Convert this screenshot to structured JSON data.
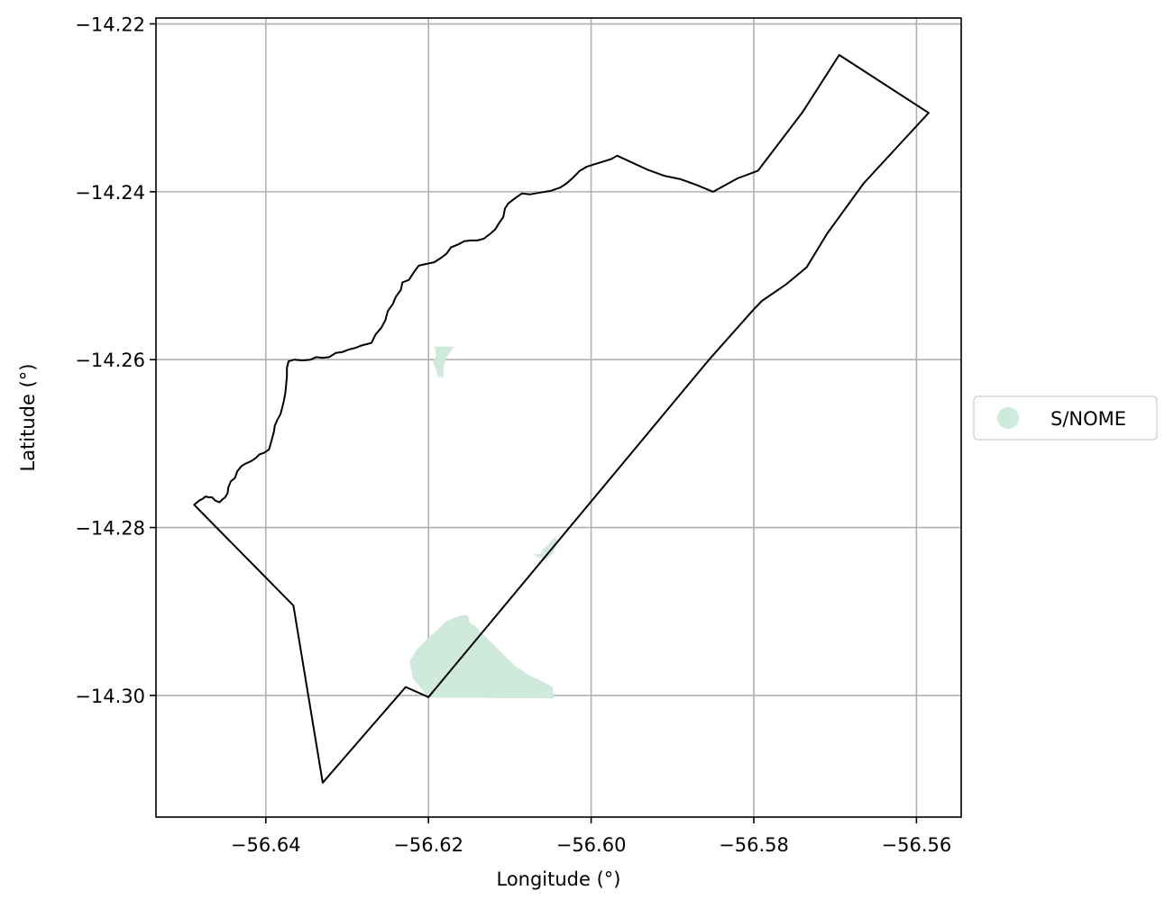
{
  "chart_data": {
    "type": "map",
    "xlabel": "Longitude (°)",
    "ylabel": "Latitude (°)",
    "xlim": [
      -56.6535,
      -56.5545
    ],
    "ylim": [
      -14.3145,
      -14.2193
    ],
    "x_ticks": [
      -56.64,
      -56.62,
      -56.6,
      -56.58,
      -56.56
    ],
    "x_tick_labels": [
      "−56.64",
      "−56.62",
      "−56.60",
      "−56.58",
      "−56.56"
    ],
    "y_ticks": [
      -14.22,
      -14.24,
      -14.26,
      -14.28,
      -14.3
    ],
    "y_tick_labels": [
      "−14.22",
      "−14.24",
      "−14.26",
      "−14.28",
      "−14.30"
    ],
    "grid": true,
    "legend_position": "center-right outside",
    "legend": [
      {
        "label": "S/NOME",
        "color": "#cfeadd"
      }
    ],
    "boundary": {
      "stroke": "#000000",
      "fill": "none",
      "coordinates": [
        [
          -56.6488,
          -14.2773
        ],
        [
          -56.6482,
          -14.2768
        ],
        [
          -56.6478,
          -14.2766
        ],
        [
          -56.6474,
          -14.2763
        ],
        [
          -56.647,
          -14.2764
        ],
        [
          -56.6466,
          -14.2764
        ],
        [
          -56.6462,
          -14.2768
        ],
        [
          -56.6457,
          -14.277
        ],
        [
          -56.6454,
          -14.2767
        ],
        [
          -56.645,
          -14.2764
        ],
        [
          -56.6447,
          -14.2759
        ],
        [
          -56.6446,
          -14.2752
        ],
        [
          -56.6443,
          -14.2745
        ],
        [
          -56.6438,
          -14.2741
        ],
        [
          -56.6435,
          -14.2733
        ],
        [
          -56.643,
          -14.2727
        ],
        [
          -56.6425,
          -14.2724
        ],
        [
          -56.6418,
          -14.2721
        ],
        [
          -56.6412,
          -14.2717
        ],
        [
          -56.6408,
          -14.2713
        ],
        [
          -56.6402,
          -14.2711
        ],
        [
          -56.6396,
          -14.2707
        ],
        [
          -56.6394,
          -14.27
        ],
        [
          -56.6392,
          -14.2693
        ],
        [
          -56.639,
          -14.2686
        ],
        [
          -56.6389,
          -14.2679
        ],
        [
          -56.6386,
          -14.2672
        ],
        [
          -56.6382,
          -14.2665
        ],
        [
          -56.638,
          -14.2658
        ],
        [
          -56.6378,
          -14.265
        ],
        [
          -56.6376,
          -14.264
        ],
        [
          -56.6375,
          -14.263
        ],
        [
          -56.6374,
          -14.262
        ],
        [
          -56.6374,
          -14.261
        ],
        [
          -56.6372,
          -14.2602
        ],
        [
          -56.6365,
          -14.26
        ],
        [
          -56.6355,
          -14.2601
        ],
        [
          -56.6345,
          -14.26
        ],
        [
          -56.6338,
          -14.2597
        ],
        [
          -56.633,
          -14.2598
        ],
        [
          -56.6322,
          -14.2597
        ],
        [
          -56.6314,
          -14.2592
        ],
        [
          -56.6306,
          -14.2591
        ],
        [
          -56.6298,
          -14.2588
        ],
        [
          -56.629,
          -14.2586
        ],
        [
          -56.6282,
          -14.2583
        ],
        [
          -56.627,
          -14.258
        ],
        [
          -56.6265,
          -14.257
        ],
        [
          -56.6258,
          -14.2562
        ],
        [
          -56.6253,
          -14.2553
        ],
        [
          -56.625,
          -14.2542
        ],
        [
          -56.6244,
          -14.2534
        ],
        [
          -56.624,
          -14.2525
        ],
        [
          -56.6234,
          -14.2517
        ],
        [
          -56.6232,
          -14.2508
        ],
        [
          -56.6224,
          -14.2505
        ],
        [
          -56.6218,
          -14.2496
        ],
        [
          -56.6212,
          -14.2488
        ],
        [
          -56.6203,
          -14.2486
        ],
        [
          -56.6193,
          -14.2484
        ],
        [
          -56.6185,
          -14.2479
        ],
        [
          -56.6178,
          -14.2474
        ],
        [
          -56.6172,
          -14.2466
        ],
        [
          -56.6164,
          -14.2463
        ],
        [
          -56.6156,
          -14.2459
        ],
        [
          -56.6148,
          -14.2458
        ],
        [
          -56.614,
          -14.2458
        ],
        [
          -56.6132,
          -14.2456
        ],
        [
          -56.6124,
          -14.245
        ],
        [
          -56.6118,
          -14.2445
        ],
        [
          -56.6113,
          -14.2437
        ],
        [
          -56.6108,
          -14.243
        ],
        [
          -56.6106,
          -14.242
        ],
        [
          -56.6102,
          -14.2414
        ],
        [
          -56.6094,
          -14.2408
        ],
        [
          -56.6085,
          -14.2402
        ],
        [
          -56.6075,
          -14.2403
        ],
        [
          -56.6063,
          -14.2401
        ],
        [
          -56.605,
          -14.2399
        ],
        [
          -56.6038,
          -14.2395
        ],
        [
          -56.603,
          -14.239
        ],
        [
          -56.6022,
          -14.2383
        ],
        [
          -56.6014,
          -14.2375
        ],
        [
          -56.6005,
          -14.237
        ],
        [
          -56.5995,
          -14.2367
        ],
        [
          -56.5985,
          -14.2364
        ],
        [
          -56.5975,
          -14.2361
        ],
        [
          -56.5968,
          -14.2357
        ],
        [
          -56.595,
          -14.2365
        ],
        [
          -56.593,
          -14.2374
        ],
        [
          -56.591,
          -14.2381
        ],
        [
          -56.589,
          -14.2385
        ],
        [
          -56.587,
          -14.2392
        ],
        [
          -56.585,
          -14.24
        ],
        [
          -56.582,
          -14.2384
        ],
        [
          -56.5795,
          -14.2375
        ],
        [
          -56.574,
          -14.2305
        ],
        [
          -56.5695,
          -14.2237
        ],
        [
          -56.5585,
          -14.2306
        ],
        [
          -56.5665,
          -14.239
        ],
        [
          -56.571,
          -14.245
        ],
        [
          -56.5735,
          -14.249
        ],
        [
          -56.576,
          -14.251
        ],
        [
          -56.579,
          -14.253
        ],
        [
          -56.58,
          -14.254
        ],
        [
          -56.5855,
          -14.26
        ],
        [
          -56.62,
          -14.3002
        ],
        [
          -56.6228,
          -14.299
        ],
        [
          -56.633,
          -14.3104
        ],
        [
          -56.6366,
          -14.2893
        ],
        [
          -56.6488,
          -14.2773
        ]
      ]
    },
    "regions": [
      {
        "label": "S/NOME",
        "color": "#cfeadd",
        "polygons": [
          [
            [
              -56.6192,
              -14.2585
            ],
            [
              -56.617,
              -14.2585
            ],
            [
              -56.6178,
              -14.2597
            ],
            [
              -56.6182,
              -14.2608
            ],
            [
              -56.6182,
              -14.262
            ],
            [
              -56.6188,
              -14.262
            ],
            [
              -56.619,
              -14.2612
            ],
            [
              -56.6194,
              -14.2603
            ],
            [
              -56.619,
              -14.2595
            ]
          ],
          [
            [
              -56.607,
              -14.2832
            ],
            [
              -56.6062,
              -14.2832
            ],
            [
              -56.6058,
              -14.2825
            ],
            [
              -56.6054,
              -14.2822
            ],
            [
              -56.605,
              -14.2818
            ],
            [
              -56.6045,
              -14.2812
            ],
            [
              -56.6042,
              -14.2817
            ],
            [
              -56.6047,
              -14.283
            ],
            [
              -56.6055,
              -14.2838
            ],
            [
              -56.6062,
              -14.2836
            ]
          ],
          [
            [
              -56.6223,
              -14.296
            ],
            [
              -56.6214,
              -14.2946
            ],
            [
              -56.62,
              -14.2932
            ],
            [
              -56.6188,
              -14.2922
            ],
            [
              -56.6178,
              -14.2912
            ],
            [
              -56.6165,
              -14.2907
            ],
            [
              -56.6158,
              -14.2905
            ],
            [
              -56.6152,
              -14.2905
            ],
            [
              -56.615,
              -14.2913
            ],
            [
              -56.6143,
              -14.2918
            ],
            [
              -56.6135,
              -14.2926
            ],
            [
              -56.612,
              -14.294
            ],
            [
              -56.6105,
              -14.2955
            ],
            [
              -56.609,
              -14.2968
            ],
            [
              -56.6075,
              -14.2977
            ],
            [
              -56.6058,
              -14.2985
            ],
            [
              -56.6048,
              -14.299
            ],
            [
              -56.6046,
              -14.3003
            ],
            [
              -56.62,
              -14.3002
            ],
            [
              -56.6218,
              -14.298
            ]
          ]
        ]
      }
    ]
  }
}
